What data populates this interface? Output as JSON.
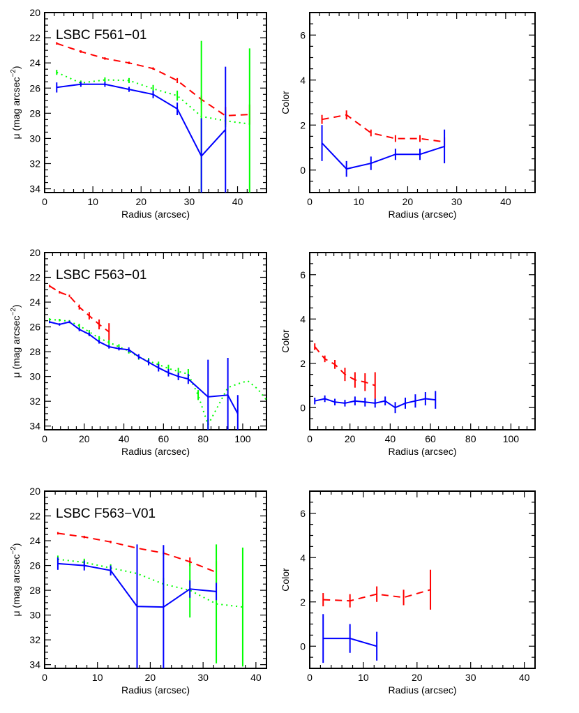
{
  "chart_data": [
    {
      "type": "line",
      "title": "LSBC F561−01",
      "xlabel": "Radius (arcsec)",
      "ylabel": "μ  (mag arcsec",
      "ylabel_sup": "−2",
      "ylabel_close": ")",
      "xlim": [
        0,
        46
      ],
      "ylim": [
        34.3,
        20
      ],
      "xticks": [
        0,
        10,
        20,
        30,
        40
      ],
      "yticks": [
        20,
        22,
        24,
        26,
        28,
        30,
        32,
        34
      ],
      "series": [
        {
          "color": "#ff0000",
          "dash": "dashed",
          "x": [
            2.5,
            7.5,
            12.5,
            17.5,
            22.5,
            27.5,
            32.5,
            37.5,
            42.5
          ],
          "y": [
            22.45,
            23.1,
            23.65,
            24.0,
            24.45,
            25.4,
            26.9,
            28.2,
            28.1
          ],
          "err": [
            0.1,
            0.1,
            0.1,
            0.1,
            0.1,
            0.2,
            0.3,
            0.7,
            0.8
          ]
        },
        {
          "color": "#00ff00",
          "dash": "dotted",
          "x": [
            2.5,
            7.5,
            12.5,
            17.5,
            22.5,
            27.5,
            32.5,
            37.5,
            42.5
          ],
          "y": [
            24.75,
            25.6,
            25.35,
            25.4,
            26.05,
            26.6,
            28.25,
            28.6,
            28.85
          ],
          "err": [
            0.2,
            0.2,
            0.2,
            0.2,
            0.3,
            0.4,
            6.0,
            0.5,
            6.0
          ]
        },
        {
          "color": "#0000ff",
          "dash": "solid",
          "x": [
            2.5,
            7.5,
            12.5,
            17.5,
            22.5,
            27.5,
            32.5,
            37.5
          ],
          "y": [
            25.95,
            25.7,
            25.7,
            26.1,
            26.5,
            27.65,
            31.4,
            29.3
          ],
          "err": [
            0.4,
            0.2,
            0.2,
            0.2,
            0.3,
            0.5,
            3.0,
            5.0
          ]
        }
      ]
    },
    {
      "type": "line",
      "title": "",
      "xlabel": "Radius (arcsec)",
      "ylabel": "Color",
      "xlim": [
        0,
        46
      ],
      "ylim": [
        -1,
        7
      ],
      "xticks": [
        0,
        10,
        20,
        30,
        40
      ],
      "yticks": [
        0,
        2,
        4,
        6
      ],
      "series": [
        {
          "color": "#ff0000",
          "dash": "dashed",
          "x": [
            2.5,
            7.5,
            12.5,
            17.5,
            22.5,
            27.5
          ],
          "y": [
            2.25,
            2.45,
            1.65,
            1.4,
            1.4,
            1.25
          ],
          "err": [
            0.2,
            0.2,
            0.15,
            0.15,
            0.15,
            0.2
          ]
        },
        {
          "color": "#0000ff",
          "dash": "solid",
          "x": [
            2.5,
            7.5,
            12.5,
            17.5,
            22.5,
            27.5
          ],
          "y": [
            1.2,
            0.05,
            0.3,
            0.7,
            0.7,
            1.05
          ],
          "err": [
            0.8,
            0.35,
            0.3,
            0.25,
            0.25,
            0.75
          ]
        }
      ]
    },
    {
      "type": "line",
      "title": "LSBC F563−01",
      "xlabel": "Radius (arcsec)",
      "ylabel": "μ  (mag arcsec",
      "ylabel_sup": "−2",
      "ylabel_close": ")",
      "xlim": [
        0,
        112
      ],
      "ylim": [
        34.3,
        20
      ],
      "xticks": [
        0,
        20,
        40,
        60,
        80,
        100
      ],
      "yticks": [
        20,
        22,
        24,
        26,
        28,
        30,
        32,
        34
      ],
      "series": [
        {
          "color": "#ff0000",
          "dash": "dashed",
          "x": [
            2.5,
            7.5,
            12.5,
            17.5,
            22.5,
            27.5,
            32.5
          ],
          "y": [
            22.7,
            23.2,
            23.5,
            24.4,
            25.1,
            25.8,
            26.4
          ],
          "err": [
            0.1,
            0.1,
            0.1,
            0.2,
            0.3,
            0.4,
            0.7
          ]
        },
        {
          "color": "#00ff00",
          "dash": "dotted",
          "x": [
            2.5,
            7.5,
            12.5,
            17.5,
            22.5,
            27.5,
            32.5,
            37.5,
            42.5,
            47.5,
            52.5,
            57.5,
            62.5,
            67.5,
            72.5,
            77.5,
            82.5,
            87.5,
            92.5,
            97.5,
            102.5,
            107.5,
            112
          ],
          "y": [
            25.4,
            25.45,
            25.55,
            25.9,
            26.4,
            26.9,
            27.25,
            27.6,
            27.95,
            28.45,
            28.75,
            29.05,
            29.35,
            29.6,
            29.8,
            31.5,
            33.9,
            32.4,
            30.9,
            30.6,
            30.35,
            31.0,
            31.9
          ],
          "err": [
            0.1,
            0.1,
            0.1,
            0.15,
            0.15,
            0.15,
            0.2,
            0.2,
            0.2,
            0.2,
            0.25,
            0.25,
            0.3,
            0.3,
            0.4,
            0.4,
            0.5,
            0,
            0,
            0,
            0,
            0,
            0
          ]
        },
        {
          "color": "#0000ff",
          "dash": "solid",
          "x": [
            2.5,
            7.5,
            12.5,
            17.5,
            22.5,
            27.5,
            32.5,
            37.5,
            42.5,
            47.5,
            52.5,
            57.5,
            62.5,
            67.5,
            72.5,
            82.5,
            92.5,
            97.5
          ],
          "y": [
            25.6,
            25.8,
            25.6,
            26.2,
            26.6,
            27.2,
            27.6,
            27.75,
            27.85,
            28.4,
            28.85,
            29.3,
            29.7,
            30.0,
            30.2,
            31.65,
            31.5,
            33.0
          ],
          "err": [
            0.1,
            0.1,
            0.1,
            0.15,
            0.15,
            0.15,
            0.15,
            0.15,
            0.2,
            0.2,
            0.25,
            0.3,
            0.3,
            0.3,
            0.4,
            3.0,
            3.0,
            1.5
          ]
        }
      ]
    },
    {
      "type": "line",
      "title": "",
      "xlabel": "Radius (arcsec)",
      "ylabel": "Color",
      "xlim": [
        0,
        112
      ],
      "ylim": [
        -1,
        7
      ],
      "xticks": [
        0,
        20,
        40,
        60,
        80,
        100
      ],
      "yticks": [
        0,
        2,
        4,
        6
      ],
      "series": [
        {
          "color": "#ff0000",
          "dash": "dashed",
          "x": [
            2.5,
            7.5,
            12.5,
            17.5,
            22.5,
            27.5,
            32.5
          ],
          "y": [
            2.75,
            2.2,
            1.95,
            1.5,
            1.25,
            1.15,
            1.0
          ],
          "err": [
            0.15,
            0.15,
            0.2,
            0.3,
            0.35,
            0.4,
            0.6
          ]
        },
        {
          "color": "#0000ff",
          "dash": "solid",
          "x": [
            2.5,
            7.5,
            12.5,
            17.5,
            22.5,
            27.5,
            32.5,
            37.5,
            42.5,
            47.5,
            52.5,
            57.5,
            62.5
          ],
          "y": [
            0.3,
            0.4,
            0.25,
            0.2,
            0.3,
            0.25,
            0.2,
            0.3,
            0.0,
            0.2,
            0.3,
            0.4,
            0.35
          ],
          "err": [
            0.15,
            0.15,
            0.15,
            0.15,
            0.2,
            0.2,
            0.2,
            0.2,
            0.25,
            0.25,
            0.3,
            0.3,
            0.4
          ]
        }
      ]
    },
    {
      "type": "line",
      "title": "LSBC F563−V01",
      "xlabel": "Radius (arcsec)",
      "ylabel": "μ  (mag arcsec",
      "ylabel_sup": "−2",
      "ylabel_close": ")",
      "xlim": [
        0,
        42
      ],
      "ylim": [
        34.3,
        20
      ],
      "xticks": [
        0,
        10,
        20,
        30,
        40
      ],
      "yticks": [
        20,
        22,
        24,
        26,
        28,
        30,
        32,
        34
      ],
      "series": [
        {
          "color": "#ff0000",
          "dash": "dashed",
          "x": [
            2.5,
            7.5,
            12.5,
            17.5,
            22.5,
            27.5,
            32.5
          ],
          "y": [
            23.4,
            23.7,
            24.1,
            24.6,
            25.0,
            25.7,
            26.55
          ],
          "err": [
            0.1,
            0.1,
            0.1,
            0.15,
            0.2,
            0.35,
            0.9
          ]
        },
        {
          "color": "#00ff00",
          "dash": "dotted",
          "x": [
            2.5,
            7.5,
            12.5,
            17.5,
            22.5,
            27.5,
            32.5,
            37.5
          ],
          "y": [
            25.5,
            25.75,
            26.2,
            26.65,
            27.5,
            28.0,
            29.1,
            29.35
          ],
          "err": [
            0.3,
            0.3,
            0.3,
            0.3,
            0.5,
            2.2,
            4.8,
            4.8
          ]
        },
        {
          "color": "#0000ff",
          "dash": "solid",
          "x": [
            2.5,
            7.5,
            12.5,
            17.5,
            22.5,
            27.5,
            32.5
          ],
          "y": [
            25.85,
            26.0,
            26.4,
            29.3,
            29.35,
            27.9,
            28.1
          ],
          "err": [
            0.5,
            0.4,
            0.4,
            5.0,
            5.0,
            0.7,
            0.7
          ]
        }
      ]
    },
    {
      "type": "line",
      "title": "",
      "xlabel": "Radius (arcsec)",
      "ylabel": "Color",
      "xlim": [
        0,
        42
      ],
      "ylim": [
        -1,
        7
      ],
      "xticks": [
        0,
        10,
        20,
        30,
        40
      ],
      "yticks": [
        0,
        2,
        4,
        6
      ],
      "series": [
        {
          "color": "#ff0000",
          "dash": "dashed",
          "x": [
            2.5,
            7.5,
            12.5,
            17.5,
            22.5
          ],
          "y": [
            2.1,
            2.05,
            2.35,
            2.2,
            2.55
          ],
          "err": [
            0.3,
            0.3,
            0.35,
            0.35,
            0.9
          ]
        },
        {
          "color": "#0000ff",
          "dash": "solid",
          "x": [
            2.5,
            7.5,
            12.5
          ],
          "y": [
            0.35,
            0.35,
            0.0
          ],
          "err": [
            1.1,
            0.65,
            0.65
          ]
        }
      ]
    }
  ]
}
